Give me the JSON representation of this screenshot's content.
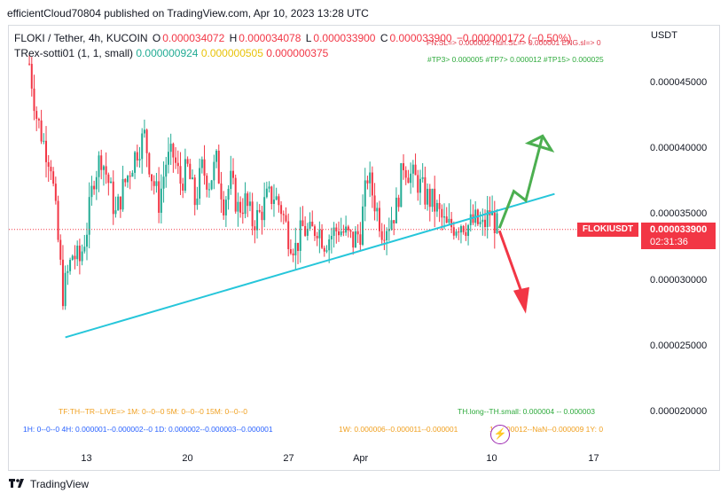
{
  "header": {
    "published": "efficientCloud70804 published on TradingView.com, Apr 10, 2023 13:28 UTC"
  },
  "legend": {
    "symbol": "FLOKI / Tether, 4h, KUCOIN",
    "o_label": "O",
    "o": "0.000034072",
    "h_label": "H",
    "h": "0.000034078",
    "l_label": "L",
    "l": "0.000033900",
    "c_label": "C",
    "c": "0.000033900",
    "change": "−0.000000172 (−0.50%)",
    "indicator": "TRex-sotti01 (1, 1, small)",
    "ind_v1": "0.000000924",
    "ind_v2": "0.000000505",
    "ind_v3": "0.000000375"
  },
  "overlay": {
    "sl_line": "FN.SL=> 0.000002  Hun.SL=> 0.000001  ENG.sl=> 0",
    "tp_line": "#TP3> 0.000005  #TP7> 0.000012  #TP15> 0.000025",
    "tf_line": "TF:TH--TR--LIVE=>  1M: 0--0--0    5M: 0--0--0    15M: 0--0--0",
    "th_line": "TH.long--TH.small: 0.000004 -- 0.000003",
    "bottom_line_a": "1H: 0--0--0    4H: 0.000001--0.000002--0    1D: 0.000002--0.000003--0.000001",
    "bottom_line_b": "1W: 0.000006--0.000011--0.000001",
    "bottom_line_c": "1  0.000012--NaN--0.000009    1Y: 0"
  },
  "price_axis": {
    "currency": "USDT",
    "ticks": [
      "0.000045000",
      "0.000040000",
      "0.000035000",
      "0.000030000",
      "0.000025000",
      "0.000020000"
    ]
  },
  "time_axis": {
    "ticks": [
      "13",
      "20",
      "27",
      "Apr",
      "10",
      "17"
    ]
  },
  "last_price": {
    "symbol": "FLOKIUSDT",
    "price": "0.000033900",
    "countdown": "02:31:36"
  },
  "footer": {
    "brand": "TradingView"
  },
  "colors": {
    "up": "#22ab94",
    "down": "#f23645",
    "trendline": "#26c6da",
    "arrow_up": "#4caf50",
    "arrow_down": "#f23645"
  },
  "chart_data": {
    "type": "candlestick",
    "timeframe": "4h",
    "ylim": [
      1.95e-05,
      4.75e-05
    ],
    "x_range": [
      "2023-03-09",
      "2023-03-19"
    ],
    "close_path": [
      [
        "2023-03-09T00:00",
        4.65e-05
      ],
      [
        "2023-03-09T12:00",
        4.25e-05
      ],
      [
        "2023-03-10T00:00",
        4.05e-05
      ],
      [
        "2023-03-10T12:00",
        3.9e-05
      ],
      [
        "2023-03-11T00:00",
        3.3e-05
      ],
      [
        "2023-03-11T08:00",
        2.9e-05
      ],
      [
        "2023-03-11T16:00",
        3.05e-05
      ],
      [
        "2023-03-12T00:00",
        3.2e-05
      ],
      [
        "2023-03-12T12:00",
        3.15e-05
      ],
      [
        "2023-03-13T00:00",
        3.4e-05
      ],
      [
        "2023-03-13T12:00",
        3.8e-05
      ],
      [
        "2023-03-14T00:00",
        3.95e-05
      ],
      [
        "2023-03-14T12:00",
        3.75e-05
      ],
      [
        "2023-03-15T00:00",
        3.5e-05
      ],
      [
        "2023-03-15T12:00",
        3.7e-05
      ],
      [
        "2023-03-16T00:00",
        3.85e-05
      ],
      [
        "2023-03-16T12:00",
        4e-05
      ],
      [
        "2023-03-17T00:00",
        4.1e-05
      ],
      [
        "2023-03-17T12:00",
        3.8e-05
      ],
      [
        "2023-03-18T00:00",
        3.6e-05
      ],
      [
        "2023-03-18T12:00",
        3.9e-05
      ],
      [
        "2023-03-19T00:00",
        3.95e-05
      ],
      [
        "2023-03-19T12:00",
        3.75e-05
      ],
      [
        "2023-03-20T00:00",
        3.85e-05
      ],
      [
        "2023-03-20T12:00",
        3.6e-05
      ],
      [
        "2023-03-21T00:00",
        3.85e-05
      ],
      [
        "2023-03-21T12:00",
        3.75e-05
      ],
      [
        "2023-03-22T00:00",
        3.9e-05
      ],
      [
        "2023-03-22T12:00",
        3.6e-05
      ],
      [
        "2023-03-23T00:00",
        3.75e-05
      ],
      [
        "2023-03-23T12:00",
        3.55e-05
      ],
      [
        "2023-03-24T00:00",
        3.6e-05
      ],
      [
        "2023-03-24T12:00",
        3.45e-05
      ],
      [
        "2023-03-25T00:00",
        3.5e-05
      ],
      [
        "2023-03-25T12:00",
        3.62e-05
      ],
      [
        "2023-03-26T00:00",
        3.65e-05
      ],
      [
        "2023-03-26T12:00",
        3.55e-05
      ],
      [
        "2023-03-27T00:00",
        3.35e-05
      ],
      [
        "2023-03-27T12:00",
        3.25e-05
      ],
      [
        "2023-03-28T00:00",
        3.4e-05
      ],
      [
        "2023-03-28T12:00",
        3.35e-05
      ],
      [
        "2023-03-29T00:00",
        3.42e-05
      ],
      [
        "2023-03-29T12:00",
        3.3e-05
      ],
      [
        "2023-03-30T00:00",
        3.35e-05
      ],
      [
        "2023-03-30T12:00",
        3.4e-05
      ],
      [
        "2023-03-31T00:00",
        3.35e-05
      ],
      [
        "2023-03-31T12:00",
        3.3e-05
      ],
      [
        "2023-04-01T00:00",
        3.38e-05
      ],
      [
        "2023-04-01T12:00",
        3.8e-05
      ],
      [
        "2023-04-02T00:00",
        3.6e-05
      ],
      [
        "2023-04-02T12:00",
        3.4e-05
      ],
      [
        "2023-04-03T00:00",
        3.45e-05
      ],
      [
        "2023-04-03T12:00",
        3.55e-05
      ],
      [
        "2023-04-04T00:00",
        3.9e-05
      ],
      [
        "2023-04-04T12:00",
        3.8e-05
      ],
      [
        "2023-04-05T00:00",
        3.75e-05
      ],
      [
        "2023-04-05T12:00",
        3.65e-05
      ],
      [
        "2023-04-06T00:00",
        3.6e-05
      ],
      [
        "2023-04-06T12:00",
        3.5e-05
      ],
      [
        "2023-04-07T00:00",
        3.4e-05
      ],
      [
        "2023-04-07T12:00",
        3.42e-05
      ],
      [
        "2023-04-08T00:00",
        3.45e-05
      ],
      [
        "2023-04-08T12:00",
        3.42e-05
      ],
      [
        "2023-04-09T00:00",
        3.45e-05
      ],
      [
        "2023-04-09T12:00",
        3.4e-05
      ],
      [
        "2023-04-10T00:00",
        3.52e-05
      ],
      [
        "2023-04-10T08:00",
        3.45e-05
      ],
      [
        "2023-04-10T13:28",
        3.39e-05
      ]
    ],
    "trendline": [
      [
        "2023-03-11T12:00",
        2.57e-05
      ],
      [
        "2023-04-14T12:00",
        3.66e-05
      ]
    ],
    "arrow_up": [
      [
        "2023-04-10T16:00",
        3.4e-05
      ],
      [
        "2023-04-11T16:00",
        3.68e-05
      ],
      [
        "2023-04-12T12:00",
        3.61e-05
      ],
      [
        "2023-04-13T16:00",
        4.1e-05
      ]
    ],
    "arrow_down": [
      [
        "2023-04-10T16:00",
        3.38e-05
      ],
      [
        "2023-04-12T12:00",
        2.75e-05
      ]
    ],
    "last_price_line": 3.39e-05
  }
}
